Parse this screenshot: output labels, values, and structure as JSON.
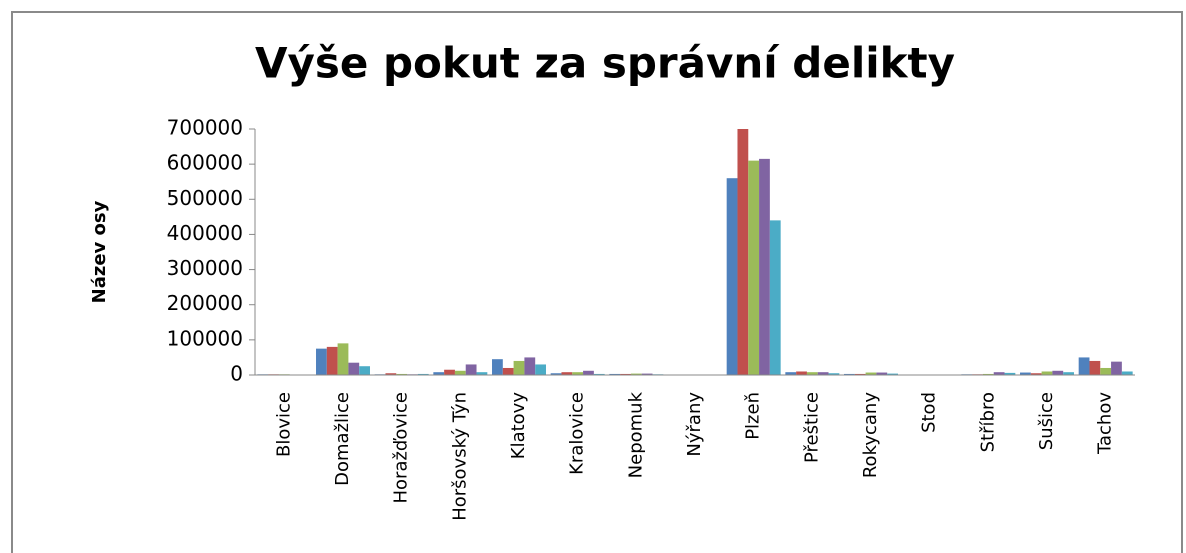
{
  "chart_data": {
    "type": "bar",
    "title": "Výše pokut za správní delikty",
    "y_label": "Název osy",
    "categories": [
      "Blovice",
      "Domažlice",
      "Horažďovice",
      "Horšovský Týn",
      "Klatovy",
      "Kralovice",
      "Nepomuk",
      "Nýřany",
      "Plzeň",
      "Přeštice",
      "Rokycany",
      "Stod",
      "Stříbro",
      "Sušice",
      "Tachov"
    ],
    "series": [
      {
        "color": "#4f81bd",
        "values": [
          2000,
          75000,
          2000,
          8000,
          45000,
          5000,
          3000,
          1000,
          560000,
          8000,
          3000,
          1000,
          2000,
          7000,
          50000
        ]
      },
      {
        "color": "#c0504d",
        "values": [
          2000,
          80000,
          5000,
          15000,
          20000,
          8000,
          3000,
          1000,
          700000,
          10000,
          3000,
          1000,
          2000,
          5000,
          40000
        ]
      },
      {
        "color": "#9bbb59",
        "values": [
          2000,
          90000,
          3000,
          12000,
          40000,
          8000,
          4000,
          1000,
          610000,
          8000,
          7000,
          1000,
          3000,
          10000,
          20000
        ]
      },
      {
        "color": "#8064a2",
        "values": [
          1000,
          35000,
          2000,
          30000,
          50000,
          12000,
          4000,
          1000,
          615000,
          8000,
          7000,
          1000,
          8000,
          12000,
          38000
        ]
      },
      {
        "color": "#4bacc6",
        "values": [
          1000,
          25000,
          3000,
          8000,
          30000,
          3000,
          2000,
          1000,
          440000,
          5000,
          4000,
          1000,
          6000,
          8000,
          10000
        ]
      }
    ],
    "ylim": [
      0,
      700000
    ],
    "yticks": [
      0,
      100000,
      200000,
      300000,
      400000,
      500000,
      600000,
      700000
    ],
    "grid": false
  }
}
